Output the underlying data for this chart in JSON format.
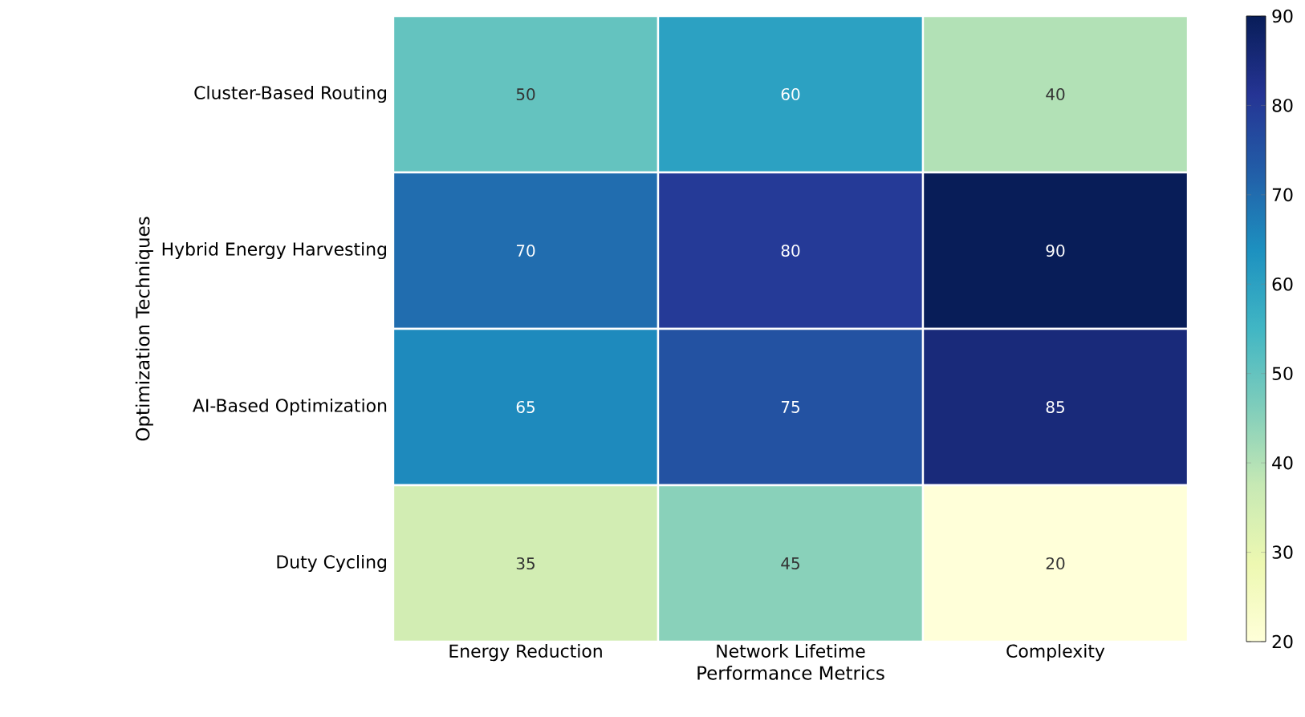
{
  "chart_data": {
    "type": "heatmap",
    "xlabel": "Performance Metrics",
    "ylabel": "Optimization Techniques",
    "categories": [
      "Energy Reduction",
      "Network Lifetime",
      "Complexity"
    ],
    "y_categories": [
      "Cluster-Based Routing",
      "Hybrid Energy Harvesting",
      "AI-Based Optimization",
      "Duty Cycling"
    ],
    "cells": [
      [
        50,
        60,
        40
      ],
      [
        70,
        80,
        90
      ],
      [
        65,
        75,
        85
      ],
      [
        35,
        45,
        20
      ]
    ],
    "data_labels": true,
    "clim": [
      20,
      90
    ],
    "cticks": [
      20,
      30,
      40,
      50,
      60,
      70,
      80,
      90
    ]
  }
}
